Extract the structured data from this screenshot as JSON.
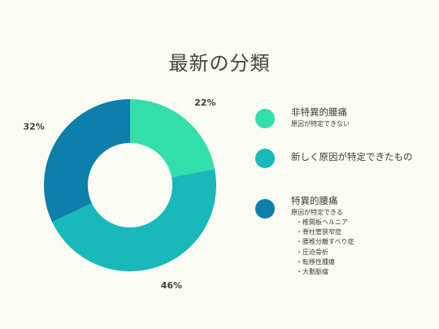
{
  "page": {
    "title": "最新の分類",
    "background": "#fbfdf4"
  },
  "chart_data": {
    "type": "pie",
    "variant": "donut",
    "categories": [
      "非特異的腰痛",
      "新しく原因が特定できたもの",
      "特異的腰痛"
    ],
    "values": [
      22,
      46,
      32
    ],
    "labels": [
      "22%",
      "46%",
      "32%"
    ],
    "colors": [
      "#33dfa9",
      "#19b9b9",
      "#0e7eaa"
    ],
    "title": "最新の分類"
  },
  "legend": {
    "items": [
      {
        "label": "非特異的腰痛",
        "sub": "原因が特定できない",
        "color": "#33dfa9"
      },
      {
        "label": "新しく原因が特定できたもの",
        "color": "#19b9b9"
      },
      {
        "label": "特異的腰痛",
        "sub": "原因が特定できる",
        "color": "#0e7eaa",
        "list": [
          "・椎間板ヘルニア",
          "・脊柱管狭窄症",
          "・腰椎分離すべり症",
          "・圧迫骨折",
          "・転移性腫瘍",
          "・大動脈瘤"
        ]
      }
    ]
  }
}
